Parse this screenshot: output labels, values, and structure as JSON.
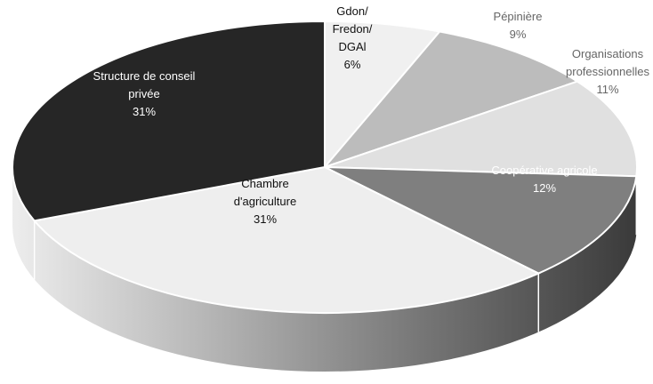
{
  "chart_data": {
    "type": "pie",
    "title": "",
    "colors": {
      "Gdon/ Fredon/ DGAl": "#f0f0f0",
      "Pépinière": "#bcbcbc",
      "Organisations professionnelles": "#e0e0e0",
      "Coopérative agricole": "#7f7f7f",
      "Chambre d'agriculture": "#eeeeee",
      "Structure de conseil privée": "#262626",
      "outline": "#ffffff",
      "label_dark": "#111111",
      "label_light": "#ffffff",
      "label_muted": "#666666"
    },
    "slices": [
      {
        "label": "Gdon/ Fredon/ DGAl",
        "lines": [
          "Gdon/",
          "Fredon/",
          "DGAl"
        ],
        "pct_text": "6%",
        "value": 6
      },
      {
        "label": "Pépinière",
        "lines": [
          "Pépinière"
        ],
        "pct_text": "9%",
        "value": 9
      },
      {
        "label": "Organisations professionnelles",
        "lines": [
          "Organisations",
          "professionnelles"
        ],
        "pct_text": "11%",
        "value": 11
      },
      {
        "label": "Coopérative agricole",
        "lines": [
          "Coopérative agricole"
        ],
        "pct_text": "12%",
        "value": 12
      },
      {
        "label": "Chambre d'agriculture",
        "lines": [
          "Chambre",
          "d'agriculture"
        ],
        "pct_text": "31%",
        "value": 31
      },
      {
        "label": "Structure de conseil privée",
        "lines": [
          "Structure de conseil",
          "privée"
        ],
        "pct_text": "31%",
        "value": 31
      }
    ]
  }
}
